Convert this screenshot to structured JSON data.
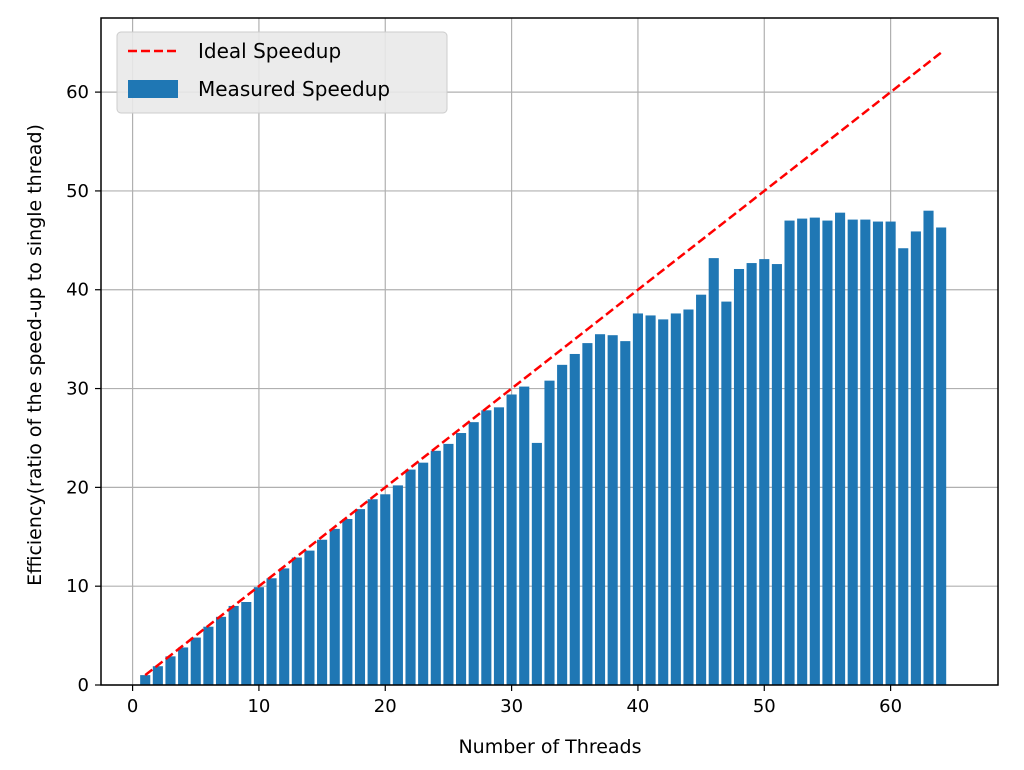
{
  "chart_data": {
    "type": "bar",
    "title": "",
    "xlabel": "Number of Threads",
    "ylabel": "Efficiency(ratio of the speed-up to single thread)",
    "xlim": [
      -2.5,
      68.5
    ],
    "ylim": [
      0,
      67.5
    ],
    "xticks": [
      0,
      10,
      20,
      30,
      40,
      50,
      60
    ],
    "yticks": [
      0,
      10,
      20,
      30,
      40,
      50,
      60
    ],
    "grid": true,
    "legend_position": "top-left",
    "series": [
      {
        "name": "Ideal Speedup",
        "kind": "line",
        "style": "dashed",
        "color": "#ff0000",
        "x": [
          1,
          64
        ],
        "y": [
          1,
          64
        ]
      },
      {
        "name": "Measured Speedup",
        "kind": "bar",
        "color": "#1f77b4",
        "x": [
          1,
          2,
          3,
          4,
          5,
          6,
          7,
          8,
          9,
          10,
          11,
          12,
          13,
          14,
          15,
          16,
          17,
          18,
          19,
          20,
          21,
          22,
          23,
          24,
          25,
          26,
          27,
          28,
          29,
          30,
          31,
          32,
          33,
          34,
          35,
          36,
          37,
          38,
          39,
          40,
          41,
          42,
          43,
          44,
          45,
          46,
          47,
          48,
          49,
          50,
          51,
          52,
          53,
          54,
          55,
          56,
          57,
          58,
          59,
          60,
          61,
          62,
          63,
          64
        ],
        "values": [
          1.0,
          1.9,
          2.9,
          3.8,
          4.8,
          5.9,
          6.9,
          8.0,
          8.4,
          9.9,
          10.8,
          11.8,
          12.9,
          13.6,
          14.7,
          15.8,
          16.8,
          17.8,
          18.8,
          19.3,
          20.2,
          21.8,
          22.5,
          23.7,
          24.4,
          25.5,
          26.6,
          27.8,
          28.1,
          29.4,
          30.2,
          24.5,
          30.8,
          32.4,
          33.5,
          34.6,
          35.5,
          35.4,
          34.8,
          37.6,
          37.4,
          37.0,
          37.6,
          38.0,
          39.5,
          43.2,
          38.8,
          42.1,
          42.7,
          43.1,
          42.6,
          47.0,
          47.2,
          47.3,
          47.0,
          47.8,
          47.1,
          47.1,
          46.9,
          46.9,
          44.2,
          45.9,
          48.0,
          46.3
        ]
      }
    ]
  }
}
